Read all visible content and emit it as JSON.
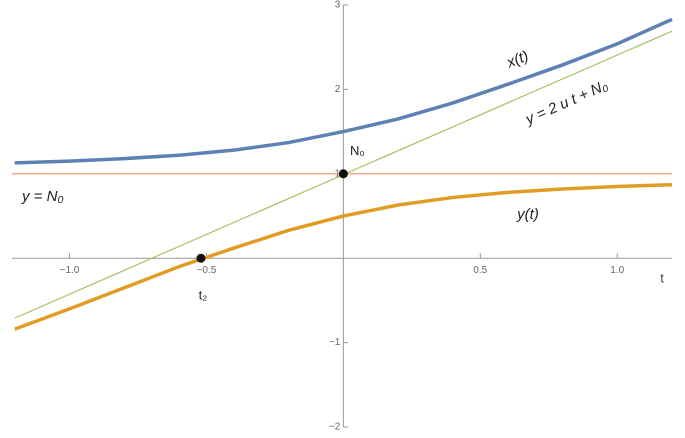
{
  "chart_data": {
    "type": "line",
    "xlim": [
      -1.21,
      1.2
    ],
    "ylim": [
      -2,
      3
    ],
    "xticks": [
      {
        "value": -1,
        "label": "−1.0"
      },
      {
        "value": -0.5,
        "label": "−0.5"
      },
      0.5,
      {
        "value": 1,
        "label": "1.0"
      }
    ],
    "yticks": [
      {
        "value": -2,
        "label": "−2"
      },
      {
        "value": -1,
        "label": "−1"
      },
      1,
      2,
      3
    ],
    "xlabel": "t",
    "series": [
      {
        "name": "x(t)",
        "color": "#5e81b5",
        "width": 3.5,
        "x": [
          -1.2,
          -1.0,
          -0.8,
          -0.6,
          -0.4,
          -0.2,
          0,
          0.2,
          0.4,
          0.6,
          0.8,
          1.0,
          1.2
        ],
        "values": [
          1.13,
          1.15,
          1.18,
          1.22,
          1.28,
          1.37,
          1.5,
          1.65,
          1.84,
          2.06,
          2.29,
          2.54,
          2.83
        ]
      },
      {
        "name": "y(t)",
        "color": "#e19c24",
        "width": 3.5,
        "x": [
          -1.2,
          -1.0,
          -0.8,
          -0.6,
          -0.4,
          -0.2,
          0,
          0.2,
          0.4,
          0.6,
          0.8,
          1.0,
          1.2
        ],
        "values": [
          -0.84,
          -0.6,
          -0.35,
          -0.1,
          0.12,
          0.33,
          0.5,
          0.63,
          0.72,
          0.78,
          0.82,
          0.85,
          0.87
        ]
      },
      {
        "name": "y = 2 u t + N₀",
        "color": "#a5c261",
        "width": 1.2,
        "x": [
          -1.2,
          1.2
        ],
        "values": [
          -0.71,
          2.69
        ]
      },
      {
        "name": "y = N₀",
        "color": "#f08a6a",
        "width": 1.2,
        "x": [
          -1.21,
          1.2
        ],
        "values": [
          1,
          1
        ]
      }
    ],
    "points": [
      {
        "x": 0,
        "y": 1,
        "label": "N₀"
      },
      {
        "x": -0.52,
        "y": 0,
        "label": "t₂"
      }
    ]
  }
}
